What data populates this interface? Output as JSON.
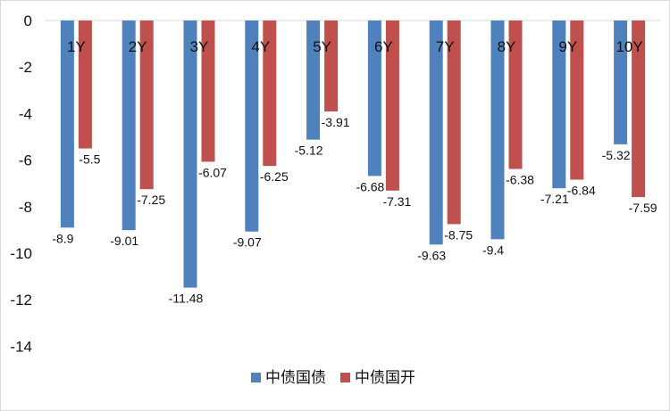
{
  "chart_data": {
    "type": "bar",
    "categories": [
      "1Y",
      "2Y",
      "3Y",
      "4Y",
      "5Y",
      "6Y",
      "7Y",
      "8Y",
      "9Y",
      "10Y"
    ],
    "series": [
      {
        "name": "中债国债",
        "color": "#4f81bd",
        "values": [
          -8.9,
          -9.01,
          -11.48,
          -9.07,
          -5.12,
          -6.68,
          -9.63,
          -9.4,
          -7.21,
          -5.32
        ]
      },
      {
        "name": "中债国开",
        "color": "#c0504d",
        "values": [
          -5.5,
          -7.25,
          -6.07,
          -6.25,
          -3.91,
          -7.31,
          -8.75,
          -6.38,
          -6.84,
          -7.59
        ]
      }
    ],
    "ylim": [
      -14,
      0
    ],
    "yticks": [
      0,
      -2,
      -4,
      -6,
      -8,
      -10,
      -12,
      -14
    ],
    "grid": false,
    "legend": "bottom",
    "title": "",
    "xlabel": "",
    "ylabel": ""
  }
}
